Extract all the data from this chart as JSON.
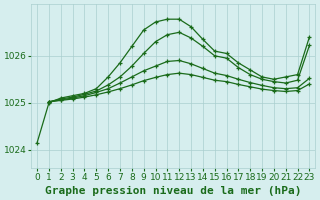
{
  "bg_color": "#d6eeee",
  "grid_color": "#aacfcf",
  "line_color": "#1a6b1a",
  "title": "Graphe pression niveau de la mer (hPa)",
  "xlim": [
    -0.5,
    23.5
  ],
  "ylim": [
    1023.6,
    1027.1
  ],
  "xticks": [
    0,
    1,
    2,
    3,
    4,
    5,
    6,
    7,
    8,
    9,
    10,
    11,
    12,
    13,
    14,
    15,
    16,
    17,
    18,
    19,
    20,
    21,
    22,
    23
  ],
  "yticks": [
    1024,
    1025,
    1026
  ],
  "line1": {
    "x": [
      0,
      1,
      2,
      3,
      4,
      5,
      6,
      7,
      8,
      9,
      10,
      11,
      12,
      13,
      14,
      15,
      16,
      17,
      18,
      19,
      20,
      21,
      22,
      23
    ],
    "y": [
      1024.15,
      1025.0,
      1025.1,
      1025.15,
      1025.2,
      1025.3,
      1025.55,
      1025.85,
      1026.2,
      1026.55,
      1026.72,
      1026.78,
      1026.78,
      1026.62,
      1026.35,
      1026.1,
      1026.05,
      1025.85,
      1025.7,
      1025.55,
      1025.5,
      1025.55,
      1025.6,
      1026.4
    ]
  },
  "line2": {
    "x": [
      1,
      2,
      3,
      4,
      5,
      6,
      7,
      8,
      9,
      10,
      11,
      12,
      13,
      14,
      15,
      16,
      17,
      18,
      19,
      20,
      21,
      22,
      23
    ],
    "y": [
      1025.02,
      1025.08,
      1025.12,
      1025.18,
      1025.25,
      1025.38,
      1025.55,
      1025.78,
      1026.05,
      1026.3,
      1026.45,
      1026.5,
      1026.38,
      1026.2,
      1026.0,
      1025.95,
      1025.75,
      1025.6,
      1025.5,
      1025.45,
      1025.42,
      1025.48,
      1026.22
    ]
  },
  "line3": {
    "x": [
      1,
      2,
      3,
      4,
      5,
      6,
      7,
      8,
      9,
      10,
      11,
      12,
      13,
      14,
      15,
      16,
      17,
      18,
      19,
      20,
      21,
      22,
      23
    ],
    "y": [
      1025.02,
      1025.06,
      1025.1,
      1025.15,
      1025.22,
      1025.3,
      1025.42,
      1025.55,
      1025.68,
      1025.78,
      1025.88,
      1025.9,
      1025.83,
      1025.73,
      1025.63,
      1025.58,
      1025.5,
      1025.43,
      1025.37,
      1025.32,
      1025.3,
      1025.32,
      1025.52
    ]
  },
  "line4": {
    "x": [
      1,
      2,
      3,
      4,
      5,
      6,
      7,
      8,
      9,
      10,
      11,
      12,
      13,
      14,
      15,
      16,
      17,
      18,
      19,
      20,
      21,
      22,
      23
    ],
    "y": [
      1025.02,
      1025.05,
      1025.08,
      1025.12,
      1025.17,
      1025.23,
      1025.3,
      1025.38,
      1025.47,
      1025.54,
      1025.6,
      1025.63,
      1025.6,
      1025.54,
      1025.48,
      1025.45,
      1025.39,
      1025.34,
      1025.29,
      1025.26,
      1025.24,
      1025.26,
      1025.4
    ]
  },
  "title_fontsize": 8,
  "tick_fontsize": 6.5,
  "marker": "+"
}
